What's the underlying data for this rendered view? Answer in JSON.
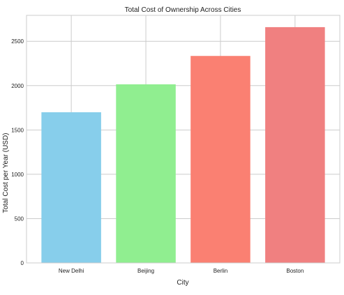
{
  "chart_data": {
    "type": "bar",
    "title": "Total Cost of Ownership Across Cities",
    "xlabel": "City",
    "ylabel": "Total Cost per Year (USD)",
    "categories": [
      "New Delhi",
      "Beijing",
      "Berlin",
      "Boston"
    ],
    "values": [
      1700,
      2015,
      2335,
      2660
    ],
    "bar_colors": [
      "#87CEEB",
      "#90EE90",
      "#FA8072",
      "#F08080"
    ],
    "ylim": [
      0,
      2793
    ],
    "yticks": [
      0,
      500,
      1000,
      1500,
      2000,
      2500
    ],
    "grid": true,
    "legend": "none"
  }
}
